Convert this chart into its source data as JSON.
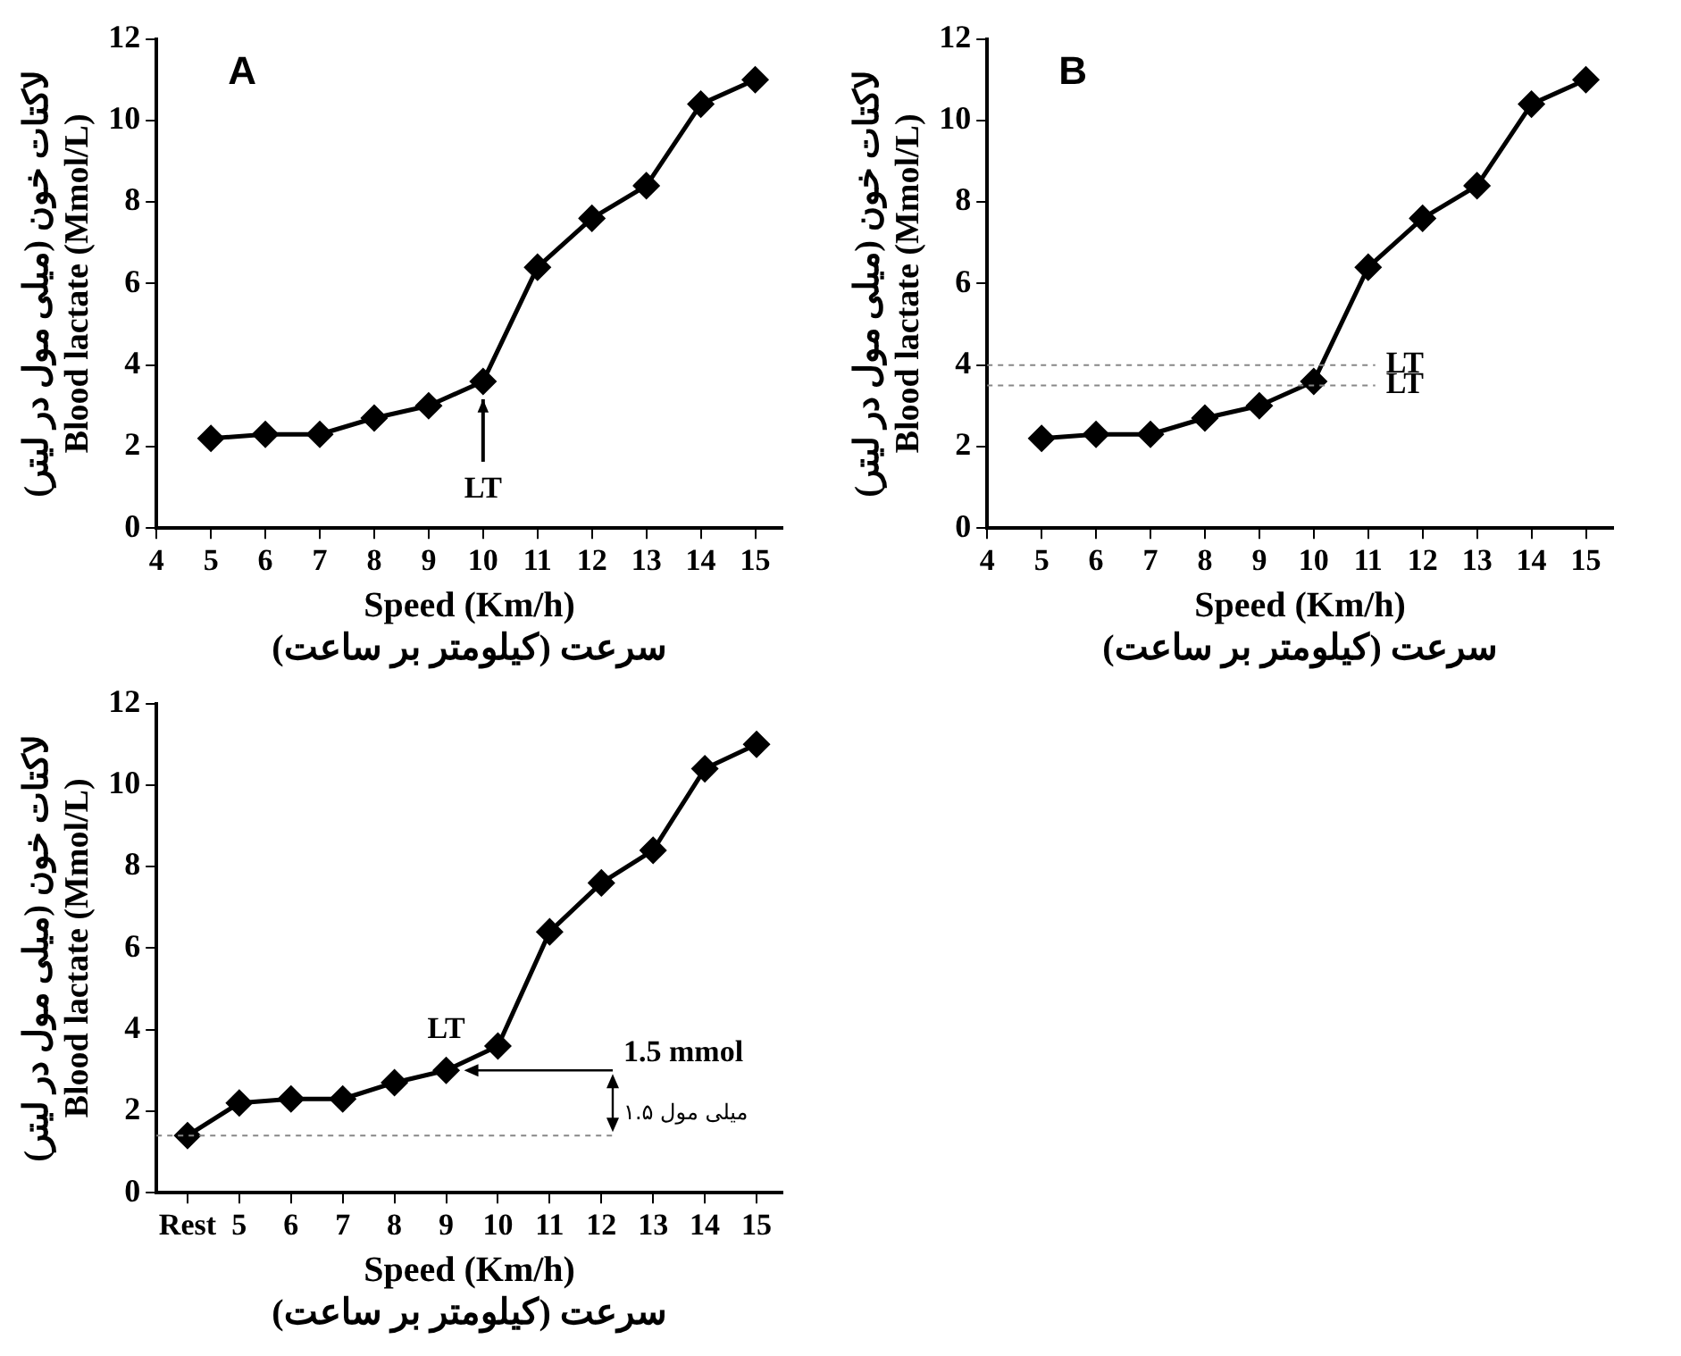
{
  "chart_data": [
    {
      "type": "line",
      "title": "A",
      "xlabel": "Speed (Km/h)\nسرعت (کیلومتر بر ساعت)",
      "ylabel": "لاکتات خون (میلی مول در لیتر)\nBlood lactate (Mmol/L)",
      "x": [
        5,
        6,
        7,
        8,
        9,
        10,
        11,
        12,
        13,
        14,
        15
      ],
      "series": [
        {
          "color": "#000000",
          "values": [
            2.2,
            2.3,
            2.3,
            2.7,
            3.0,
            3.6,
            6.4,
            7.6,
            8.4,
            10.4,
            11.0
          ]
        }
      ],
      "xlim": [
        4,
        15.5
      ],
      "xticks": [
        4,
        5,
        6,
        7,
        8,
        9,
        10,
        11,
        12,
        13,
        14,
        15
      ],
      "ylim": [
        0,
        12
      ],
      "yticks": [
        0,
        2,
        4,
        6,
        8,
        10,
        12
      ],
      "grid": false,
      "legend": false,
      "marker": "diamond",
      "line_style": "solid",
      "annotations": [
        {
          "text": "LT",
          "x": 10,
          "y": 3.6
        }
      ]
    },
    {
      "type": "line",
      "title": "B",
      "xlabel": "Speed (Km/h)\nسرعت (کیلومتر بر ساعت)",
      "ylabel": "لاکتات خون (میلی مول در لیتر)\nBlood lactate (Mmol/L)",
      "x": [
        5,
        6,
        7,
        8,
        9,
        10,
        11,
        12,
        13,
        14,
        15
      ],
      "series": [
        {
          "color": "#000000",
          "values": [
            2.2,
            2.3,
            2.3,
            2.7,
            3.0,
            3.6,
            6.4,
            7.6,
            8.4,
            10.4,
            11.0
          ]
        }
      ],
      "xlim": [
        4,
        15.5
      ],
      "xticks": [
        4,
        5,
        6,
        7,
        8,
        9,
        10,
        11,
        12,
        13,
        14,
        15
      ],
      "ylim": [
        0,
        12
      ],
      "yticks": [
        0,
        2,
        4,
        6,
        8,
        10,
        12
      ],
      "grid": false,
      "legend": false,
      "marker": "diamond",
      "line_style": "solid",
      "ref_lines": [
        {
          "axis": "y",
          "value": 4,
          "label": "LT",
          "color": "#888888",
          "line_style": "dashed"
        },
        {
          "axis": "y",
          "value": 3.5,
          "label": "LT",
          "color": "#888888",
          "line_style": "dashed"
        }
      ]
    },
    {
      "type": "line",
      "xlabel": "Speed (Km/h)\nسرعت (کیلومتر بر ساعت)",
      "ylabel": "لاکتات خون (میلی مول در لیتر)\nBlood lactate (Mmol/L)",
      "x": [
        4,
        5,
        6,
        7,
        8,
        9,
        10,
        11,
        12,
        13,
        14,
        15
      ],
      "series": [
        {
          "color": "#000000",
          "values": [
            1.4,
            2.2,
            2.3,
            2.3,
            2.7,
            3.0,
            3.6,
            6.4,
            7.6,
            8.4,
            10.4,
            11.0
          ]
        }
      ],
      "xlim": [
        3.4,
        15.5
      ],
      "xticks": [
        {
          "value": 4,
          "label": "Rest"
        },
        5,
        6,
        7,
        8,
        9,
        10,
        11,
        12,
        13,
        14,
        15
      ],
      "ylim": [
        0,
        12
      ],
      "yticks": [
        0,
        2,
        4,
        6,
        8,
        10,
        12
      ],
      "grid": false,
      "legend": false,
      "marker": "diamond",
      "line_style": "solid",
      "ref_lines": [
        {
          "axis": "y",
          "value": 1.4,
          "color": "#888888",
          "line_style": "dashed"
        }
      ],
      "annotations": [
        {
          "text": "LT",
          "x": 9,
          "y": 3.0
        },
        "1.5 mmol",
        "۱.۵ میلی مول"
      ]
    }
  ]
}
